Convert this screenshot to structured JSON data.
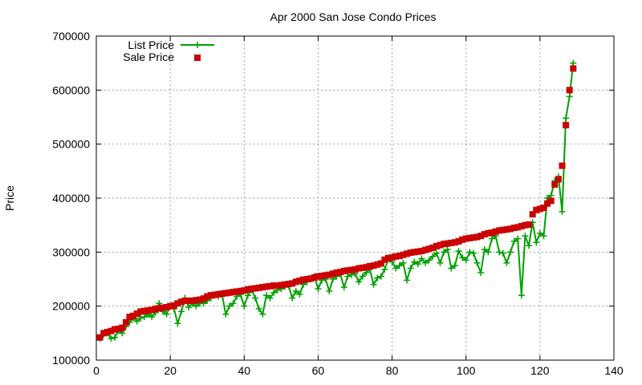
{
  "chart_data": {
    "type": "line",
    "title": "Apr 2000 San Jose Condo Prices",
    "xlabel": "",
    "ylabel": "Price",
    "xlim": [
      0,
      140
    ],
    "ylim": [
      100000,
      700000
    ],
    "xticks": [
      0,
      20,
      40,
      60,
      80,
      100,
      120,
      140
    ],
    "yticks": [
      100000,
      200000,
      300000,
      400000,
      500000,
      600000,
      700000
    ],
    "grid": true,
    "legend_position": "top-left",
    "series": [
      {
        "name": "List Price",
        "color": "#00a000",
        "style": "line-with-plus-markers",
        "x": [
          1,
          2,
          3,
          4,
          5,
          6,
          7,
          8,
          9,
          10,
          11,
          12,
          13,
          14,
          15,
          16,
          17,
          18,
          19,
          20,
          21,
          22,
          23,
          24,
          25,
          26,
          27,
          28,
          29,
          30,
          31,
          32,
          33,
          34,
          35,
          36,
          37,
          38,
          39,
          40,
          41,
          42,
          43,
          44,
          45,
          46,
          47,
          48,
          49,
          50,
          51,
          52,
          53,
          54,
          55,
          56,
          57,
          58,
          59,
          60,
          61,
          62,
          63,
          64,
          65,
          66,
          67,
          68,
          69,
          70,
          71,
          72,
          73,
          74,
          75,
          76,
          77,
          78,
          79,
          80,
          81,
          82,
          83,
          84,
          85,
          86,
          87,
          88,
          89,
          90,
          91,
          92,
          93,
          94,
          95,
          96,
          97,
          98,
          99,
          100,
          101,
          102,
          103,
          104,
          105,
          106,
          107,
          108,
          109,
          110,
          111,
          112,
          113,
          114,
          115,
          116,
          117,
          118,
          119,
          120,
          121,
          122,
          123,
          124,
          125,
          126,
          127,
          128,
          129
        ],
        "values": [
          140000,
          148000,
          150000,
          140000,
          142000,
          155000,
          150000,
          162000,
          170000,
          178000,
          172000,
          178000,
          180000,
          185000,
          180000,
          188000,
          205000,
          190000,
          185000,
          200000,
          195000,
          168000,
          190000,
          215000,
          198000,
          205000,
          200000,
          205000,
          205000,
          210000,
          215000,
          220000,
          218000,
          222000,
          185000,
          200000,
          205000,
          218000,
          222000,
          200000,
          220000,
          230000,
          215000,
          195000,
          185000,
          220000,
          215000,
          225000,
          230000,
          232000,
          236000,
          238000,
          215000,
          228000,
          222000,
          240000,
          245000,
          250000,
          255000,
          232000,
          248000,
          250000,
          228000,
          250000,
          255000,
          260000,
          235000,
          255000,
          258000,
          260000,
          245000,
          255000,
          262000,
          268000,
          240000,
          252000,
          255000,
          268000,
          288000,
          282000,
          270000,
          275000,
          280000,
          248000,
          270000,
          282000,
          278000,
          288000,
          280000,
          285000,
          292000,
          298000,
          280000,
          300000,
          305000,
          270000,
          275000,
          302000,
          290000,
          285000,
          300000,
          298000,
          280000,
          262000,
          305000,
          300000,
          325000,
          330000,
          300000,
          298000,
          280000,
          300000,
          320000,
          325000,
          220000,
          330000,
          312000,
          355000,
          318000,
          335000,
          330000,
          400000,
          405000,
          432000,
          440000,
          375000,
          548000,
          588000,
          650000
        ]
      },
      {
        "name": "Sale Price",
        "color": "#cc0000",
        "style": "square-markers",
        "x": [
          1,
          2,
          3,
          4,
          5,
          6,
          7,
          8,
          9,
          10,
          11,
          12,
          13,
          14,
          15,
          16,
          17,
          18,
          19,
          20,
          21,
          22,
          23,
          24,
          25,
          26,
          27,
          28,
          29,
          30,
          31,
          32,
          33,
          34,
          35,
          36,
          37,
          38,
          39,
          40,
          41,
          42,
          43,
          44,
          45,
          46,
          47,
          48,
          49,
          50,
          51,
          52,
          53,
          54,
          55,
          56,
          57,
          58,
          59,
          60,
          61,
          62,
          63,
          64,
          65,
          66,
          67,
          68,
          69,
          70,
          71,
          72,
          73,
          74,
          75,
          76,
          77,
          78,
          79,
          80,
          81,
          82,
          83,
          84,
          85,
          86,
          87,
          88,
          89,
          90,
          91,
          92,
          93,
          94,
          95,
          96,
          97,
          98,
          99,
          100,
          101,
          102,
          103,
          104,
          105,
          106,
          107,
          108,
          109,
          110,
          111,
          112,
          113,
          114,
          115,
          116,
          117,
          118,
          119,
          120,
          121,
          122,
          123,
          124,
          125,
          126,
          127,
          128,
          129
        ],
        "values": [
          142000,
          150000,
          152000,
          154000,
          157000,
          158000,
          160000,
          170000,
          180000,
          182000,
          186000,
          190000,
          191000,
          192000,
          193000,
          195000,
          196000,
          197000,
          198000,
          200000,
          201000,
          205000,
          208000,
          210000,
          210000,
          210000,
          211000,
          212000,
          214000,
          218000,
          220000,
          221000,
          222000,
          223000,
          224000,
          225000,
          226000,
          227000,
          228000,
          229000,
          231000,
          232000,
          233000,
          234000,
          235000,
          236000,
          237000,
          238000,
          238000,
          239000,
          240000,
          241000,
          242000,
          245000,
          247000,
          249000,
          250000,
          251000,
          253000,
          255000,
          256000,
          257000,
          258000,
          260000,
          262000,
          263000,
          265000,
          266000,
          267000,
          268000,
          270000,
          271000,
          272000,
          274000,
          275000,
          277000,
          279000,
          286000,
          289000,
          290000,
          292000,
          293000,
          295000,
          297000,
          299000,
          300000,
          301000,
          302000,
          304000,
          306000,
          308000,
          311000,
          313000,
          315000,
          316000,
          317000,
          318000,
          320000,
          323000,
          325000,
          326000,
          327000,
          328000,
          330000,
          333000,
          335000,
          336000,
          338000,
          340000,
          341000,
          342000,
          343000,
          345000,
          346000,
          348000,
          350000,
          351000,
          370000,
          378000,
          380000,
          382000,
          390000,
          395000,
          425000,
          435000,
          460000,
          535000,
          600000,
          640000
        ]
      }
    ]
  }
}
